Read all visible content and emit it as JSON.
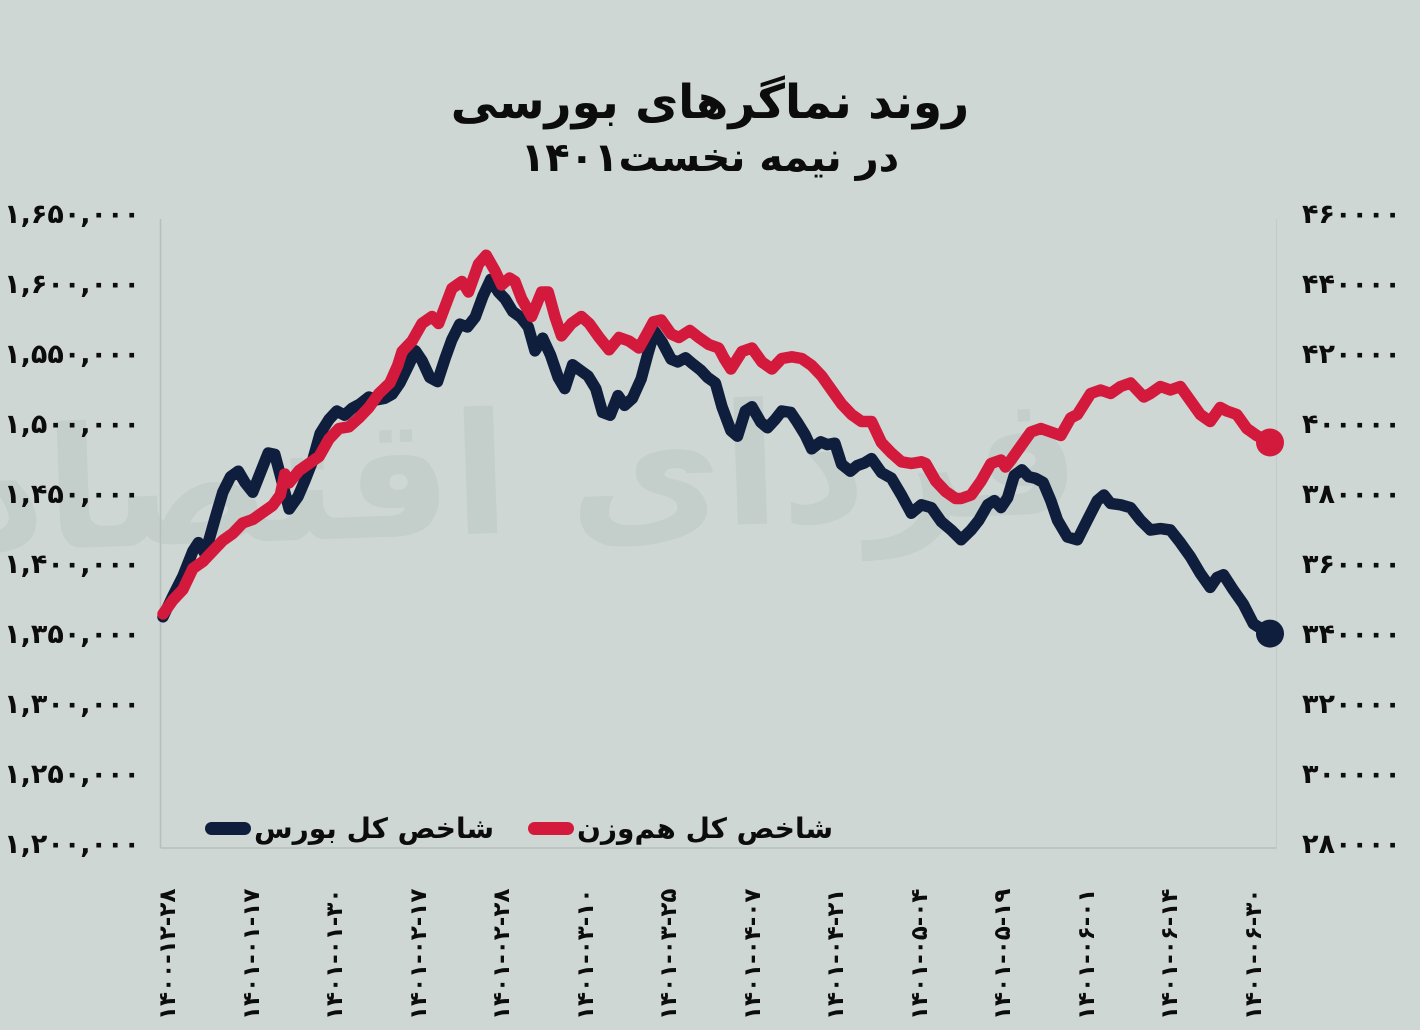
{
  "background": "#ced7d3",
  "title": {
    "line1": "روند نماگرهای بورسی",
    "line2": "در نیمه نخست۱۴۰۱"
  },
  "watermark": "فردای اقتصاد",
  "colors": {
    "bourse_line": "#101e3e",
    "hamvazn_line": "#d31a3c",
    "axis_line": "#b7bebb",
    "text": "#0c0c0c"
  },
  "legend": [
    {
      "label": "شاخص کل بورس",
      "color": "#101e3e"
    },
    {
      "label": "شاخص کل هم‌وزن",
      "color": "#d31a3c"
    }
  ],
  "chart_data": {
    "type": "line",
    "title": "روند نماگرهای بورسی در نیمه نخست ۱۴۰۱",
    "grid": false,
    "legend_position": "bottom-left",
    "x_tick_labels": [
      "۱۴۰۰-۱۲-۲۸",
      "۱۴۰۱-۰۱-۱۷",
      "۱۴۰۱-۰۱-۳۰",
      "۱۴۰۱-۰۲-۱۷",
      "۱۴۰۱-۰۲-۲۸",
      "۱۴۰۱-۰۳-۱۰",
      "۱۴۰۱-۰۳-۲۵",
      "۱۴۰۱-۰۴-۰۷",
      "۱۴۰۱-۰۴-۲۱",
      "۱۴۰۱-۰۵-۰۴",
      "۱۴۰۱-۰۵-۱۹",
      "۱۴۰۱-۰۶-۰۱",
      "۱۴۰۱-۰۶-۱۴",
      "۱۴۰۱-۰۶-۳۰"
    ],
    "left_axis": {
      "min": 1200000,
      "max": 1650000,
      "step": 50000,
      "tick_labels": [
        "۱,۶۵۰,۰۰۰",
        "۱,۶۰۰,۰۰۰",
        "۱,۵۵۰,۰۰۰",
        "۱,۵۰۰,۰۰۰",
        "۱,۴۵۰,۰۰۰",
        "۱,۴۰۰,۰۰۰",
        "۱,۳۵۰,۰۰۰",
        "۱,۳۰۰,۰۰۰",
        "۱,۲۵۰,۰۰۰",
        "۱,۲۰۰,۰۰۰"
      ]
    },
    "right_axis": {
      "min": 280000,
      "max": 460000,
      "step": 20000,
      "tick_labels": [
        "۴۶۰۰۰۰",
        "۴۴۰۰۰۰",
        "۴۲۰۰۰۰",
        "۴۰۰۰۰۰",
        "۳۸۰۰۰۰",
        "۳۶۰۰۰۰",
        "۳۴۰۰۰۰",
        "۳۲۰۰۰۰",
        "۳۰۰۰۰۰",
        "۲۸۰۰۰۰"
      ]
    },
    "series": [
      {
        "name": "شاخص کل بورس",
        "axis": "left",
        "color": "#101e3e",
        "points": [
          [
            0.0,
            1363000
          ],
          [
            0.009,
            1378000
          ],
          [
            0.018,
            1392000
          ],
          [
            0.027,
            1410000
          ],
          [
            0.032,
            1416000
          ],
          [
            0.038,
            1408000
          ],
          [
            0.047,
            1433000
          ],
          [
            0.054,
            1452000
          ],
          [
            0.061,
            1463000
          ],
          [
            0.068,
            1467000
          ],
          [
            0.074,
            1459000
          ],
          [
            0.081,
            1452000
          ],
          [
            0.088,
            1466000
          ],
          [
            0.095,
            1480000
          ],
          [
            0.101,
            1479000
          ],
          [
            0.108,
            1458000
          ],
          [
            0.114,
            1440000
          ],
          [
            0.122,
            1449000
          ],
          [
            0.128,
            1460000
          ],
          [
            0.135,
            1474000
          ],
          [
            0.142,
            1494000
          ],
          [
            0.15,
            1504000
          ],
          [
            0.157,
            1510000
          ],
          [
            0.164,
            1507000
          ],
          [
            0.171,
            1512000
          ],
          [
            0.178,
            1515000
          ],
          [
            0.186,
            1520000
          ],
          [
            0.193,
            1518000
          ],
          [
            0.2,
            1519000
          ],
          [
            0.207,
            1522000
          ],
          [
            0.214,
            1530000
          ],
          [
            0.222,
            1543000
          ],
          [
            0.228,
            1553000
          ],
          [
            0.234,
            1546000
          ],
          [
            0.241,
            1534000
          ],
          [
            0.248,
            1531000
          ],
          [
            0.255,
            1548000
          ],
          [
            0.261,
            1561000
          ],
          [
            0.268,
            1572000
          ],
          [
            0.275,
            1570000
          ],
          [
            0.282,
            1577000
          ],
          [
            0.289,
            1592000
          ],
          [
            0.296,
            1604000
          ],
          [
            0.303,
            1595000
          ],
          [
            0.309,
            1590000
          ],
          [
            0.316,
            1581000
          ],
          [
            0.323,
            1577000
          ],
          [
            0.33,
            1570000
          ],
          [
            0.336,
            1553000
          ],
          [
            0.343,
            1562000
          ],
          [
            0.35,
            1550000
          ],
          [
            0.357,
            1534000
          ],
          [
            0.363,
            1526000
          ],
          [
            0.37,
            1543000
          ],
          [
            0.377,
            1539000
          ],
          [
            0.384,
            1535000
          ],
          [
            0.391,
            1526000
          ],
          [
            0.397,
            1509000
          ],
          [
            0.404,
            1507000
          ],
          [
            0.411,
            1521000
          ],
          [
            0.417,
            1514000
          ],
          [
            0.424,
            1519000
          ],
          [
            0.432,
            1533000
          ],
          [
            0.438,
            1551000
          ],
          [
            0.444,
            1567000
          ],
          [
            0.451,
            1559000
          ],
          [
            0.459,
            1547000
          ],
          [
            0.465,
            1545000
          ],
          [
            0.472,
            1548000
          ],
          [
            0.478,
            1544000
          ],
          [
            0.486,
            1539000
          ],
          [
            0.492,
            1534000
          ],
          [
            0.499,
            1530000
          ],
          [
            0.505,
            1513000
          ],
          [
            0.513,
            1496000
          ],
          [
            0.519,
            1492000
          ],
          [
            0.526,
            1510000
          ],
          [
            0.532,
            1513000
          ],
          [
            0.54,
            1502000
          ],
          [
            0.546,
            1498000
          ],
          [
            0.553,
            1504000
          ],
          [
            0.559,
            1510000
          ],
          [
            0.567,
            1509000
          ],
          [
            0.573,
            1502000
          ],
          [
            0.58,
            1493000
          ],
          [
            0.586,
            1483000
          ],
          [
            0.594,
            1488000
          ],
          [
            0.6,
            1486000
          ],
          [
            0.607,
            1487000
          ],
          [
            0.613,
            1472000
          ],
          [
            0.621,
            1467000
          ],
          [
            0.627,
            1471000
          ],
          [
            0.634,
            1473000
          ],
          [
            0.64,
            1476000
          ],
          [
            0.649,
            1466000
          ],
          [
            0.658,
            1462000
          ],
          [
            0.667,
            1450000
          ],
          [
            0.676,
            1437000
          ],
          [
            0.685,
            1443000
          ],
          [
            0.694,
            1441000
          ],
          [
            0.703,
            1431000
          ],
          [
            0.712,
            1425000
          ],
          [
            0.721,
            1418000
          ],
          [
            0.73,
            1425000
          ],
          [
            0.737,
            1432000
          ],
          [
            0.745,
            1443000
          ],
          [
            0.751,
            1446000
          ],
          [
            0.757,
            1441000
          ],
          [
            0.763,
            1448000
          ],
          [
            0.769,
            1464000
          ],
          [
            0.776,
            1468000
          ],
          [
            0.782,
            1463000
          ],
          [
            0.788,
            1462000
          ],
          [
            0.795,
            1459000
          ],
          [
            0.802,
            1446000
          ],
          [
            0.808,
            1432000
          ],
          [
            0.817,
            1420000
          ],
          [
            0.826,
            1418000
          ],
          [
            0.835,
            1432000
          ],
          [
            0.844,
            1446000
          ],
          [
            0.85,
            1450000
          ],
          [
            0.856,
            1444000
          ],
          [
            0.865,
            1443000
          ],
          [
            0.874,
            1441000
          ],
          [
            0.883,
            1432000
          ],
          [
            0.892,
            1425000
          ],
          [
            0.901,
            1426000
          ],
          [
            0.91,
            1425000
          ],
          [
            0.919,
            1416000
          ],
          [
            0.928,
            1406000
          ],
          [
            0.937,
            1394000
          ],
          [
            0.946,
            1384000
          ],
          [
            0.952,
            1391000
          ],
          [
            0.958,
            1393000
          ],
          [
            0.967,
            1382000
          ],
          [
            0.976,
            1372000
          ],
          [
            0.985,
            1358000
          ],
          [
            0.993,
            1354000
          ],
          [
            1.0,
            1351000
          ]
        ]
      },
      {
        "name": "شاخص کل هم‌وزن",
        "axis": "right",
        "color": "#d31a3c",
        "points": [
          [
            0.0,
            346000
          ],
          [
            0.009,
            350000
          ],
          [
            0.018,
            353000
          ],
          [
            0.027,
            359000
          ],
          [
            0.036,
            361000
          ],
          [
            0.045,
            364000
          ],
          [
            0.054,
            367000
          ],
          [
            0.063,
            369000
          ],
          [
            0.072,
            372000
          ],
          [
            0.081,
            373000
          ],
          [
            0.09,
            375000
          ],
          [
            0.099,
            377000
          ],
          [
            0.106,
            380000
          ],
          [
            0.11,
            386000
          ],
          [
            0.114,
            383500
          ],
          [
            0.123,
            387000
          ],
          [
            0.132,
            389000
          ],
          [
            0.141,
            391000
          ],
          [
            0.15,
            396000
          ],
          [
            0.159,
            399000
          ],
          [
            0.168,
            399500
          ],
          [
            0.177,
            402000
          ],
          [
            0.186,
            405000
          ],
          [
            0.195,
            409000
          ],
          [
            0.205,
            412000
          ],
          [
            0.212,
            417000
          ],
          [
            0.216,
            421000
          ],
          [
            0.225,
            424000
          ],
          [
            0.234,
            429000
          ],
          [
            0.243,
            431000
          ],
          [
            0.249,
            429000
          ],
          [
            0.261,
            439000
          ],
          [
            0.27,
            441000
          ],
          [
            0.276,
            438000
          ],
          [
            0.285,
            446000
          ],
          [
            0.292,
            448500
          ],
          [
            0.3,
            444000
          ],
          [
            0.306,
            440000
          ],
          [
            0.313,
            442000
          ],
          [
            0.318,
            441000
          ],
          [
            0.324,
            436000
          ],
          [
            0.333,
            431000
          ],
          [
            0.342,
            438000
          ],
          [
            0.348,
            438000
          ],
          [
            0.354,
            431000
          ],
          [
            0.36,
            425500
          ],
          [
            0.369,
            429000
          ],
          [
            0.378,
            431000
          ],
          [
            0.385,
            429000
          ],
          [
            0.394,
            425000
          ],
          [
            0.403,
            421500
          ],
          [
            0.412,
            425000
          ],
          [
            0.421,
            424000
          ],
          [
            0.43,
            422000
          ],
          [
            0.437,
            426000
          ],
          [
            0.443,
            429500
          ],
          [
            0.45,
            430000
          ],
          [
            0.459,
            426000
          ],
          [
            0.466,
            425000
          ],
          [
            0.476,
            427000
          ],
          [
            0.484,
            425000
          ],
          [
            0.493,
            423000
          ],
          [
            0.502,
            422000
          ],
          [
            0.507,
            419000
          ],
          [
            0.513,
            416000
          ],
          [
            0.523,
            421000
          ],
          [
            0.532,
            422000
          ],
          [
            0.541,
            418000
          ],
          [
            0.55,
            416000
          ],
          [
            0.559,
            419000
          ],
          [
            0.568,
            419500
          ],
          [
            0.577,
            419000
          ],
          [
            0.586,
            417000
          ],
          [
            0.595,
            414000
          ],
          [
            0.604,
            410000
          ],
          [
            0.613,
            406000
          ],
          [
            0.622,
            403000
          ],
          [
            0.631,
            401000
          ],
          [
            0.64,
            401000
          ],
          [
            0.649,
            395000
          ],
          [
            0.658,
            392000
          ],
          [
            0.667,
            389500
          ],
          [
            0.676,
            389000
          ],
          [
            0.685,
            389500
          ],
          [
            0.689,
            389000
          ],
          [
            0.698,
            384000
          ],
          [
            0.707,
            381000
          ],
          [
            0.716,
            379000
          ],
          [
            0.721,
            379000
          ],
          [
            0.73,
            380000
          ],
          [
            0.739,
            384000
          ],
          [
            0.748,
            389000
          ],
          [
            0.757,
            390000
          ],
          [
            0.761,
            388000
          ],
          [
            0.766,
            390000
          ],
          [
            0.775,
            394000
          ],
          [
            0.784,
            398000
          ],
          [
            0.793,
            399000
          ],
          [
            0.802,
            398000
          ],
          [
            0.811,
            397000
          ],
          [
            0.82,
            402000
          ],
          [
            0.826,
            403000
          ],
          [
            0.838,
            409000
          ],
          [
            0.847,
            410000
          ],
          [
            0.856,
            409000
          ],
          [
            0.865,
            411000
          ],
          [
            0.874,
            412000
          ],
          [
            0.886,
            408000
          ],
          [
            0.892,
            409000
          ],
          [
            0.901,
            411000
          ],
          [
            0.91,
            410000
          ],
          [
            0.919,
            411000
          ],
          [
            0.928,
            407000
          ],
          [
            0.937,
            403000
          ],
          [
            0.946,
            401000
          ],
          [
            0.955,
            405000
          ],
          [
            0.961,
            404000
          ],
          [
            0.97,
            403000
          ],
          [
            0.979,
            399000
          ],
          [
            0.988,
            397000
          ],
          [
            1.0,
            395000
          ]
        ]
      }
    ]
  }
}
